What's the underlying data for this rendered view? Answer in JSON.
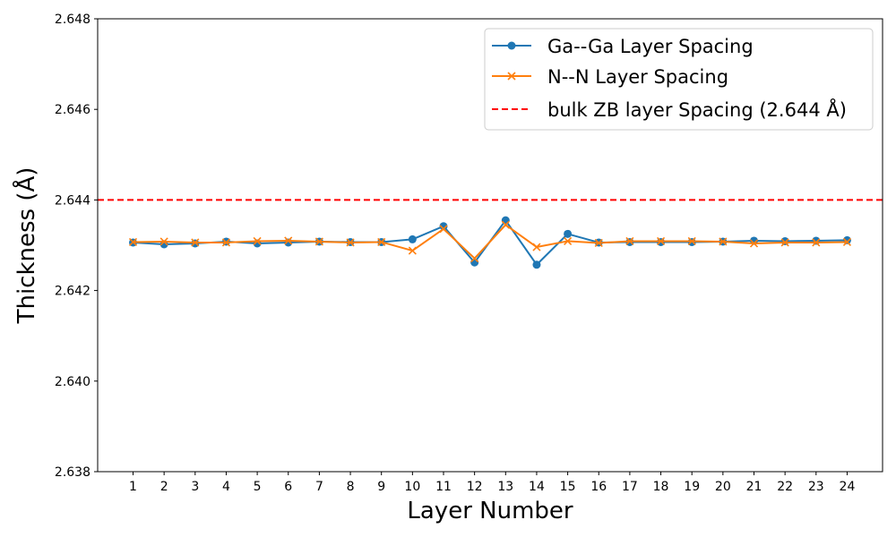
{
  "chart_data": {
    "type": "line",
    "xlabel": "Layer Number",
    "ylabel": "Thickness (Å)",
    "ylim": [
      2.638,
      2.648
    ],
    "yticks": [
      "2.638",
      "2.640",
      "2.642",
      "2.644",
      "2.646",
      "2.648"
    ],
    "categories": [
      1,
      2,
      3,
      4,
      5,
      6,
      7,
      8,
      9,
      10,
      11,
      12,
      13,
      14,
      15,
      16,
      17,
      18,
      19,
      20,
      21,
      22,
      23,
      24
    ],
    "series": [
      {
        "name": "Ga--Ga Layer Spacing",
        "color": "#1f77b4",
        "marker": "circle",
        "values": [
          2.64306,
          2.64302,
          2.64304,
          2.64308,
          2.64304,
          2.64306,
          2.64308,
          2.64307,
          2.64307,
          2.64313,
          2.64342,
          2.64262,
          2.64355,
          2.64257,
          2.64325,
          2.64306,
          2.64307,
          2.64307,
          2.64307,
          2.64308,
          2.6431,
          2.64309,
          2.6431,
          2.64311
        ]
      },
      {
        "name": "N--N Layer Spacing",
        "color": "#ff7f0e",
        "marker": "x",
        "values": [
          2.64307,
          2.64308,
          2.64306,
          2.64306,
          2.64309,
          2.6431,
          2.64308,
          2.64306,
          2.64307,
          2.64288,
          2.64336,
          2.64271,
          2.64345,
          2.64296,
          2.64309,
          2.64305,
          2.64309,
          2.64309,
          2.64309,
          2.64308,
          2.64304,
          2.64306,
          2.64306,
          2.64307
        ]
      }
    ],
    "reference_line": {
      "name": "bulk ZB layer Spacing (2.644 Å)",
      "value": 2.644,
      "color": "#ff0000",
      "style": "dashed"
    },
    "legend_position": "top-right",
    "grid": false
  }
}
